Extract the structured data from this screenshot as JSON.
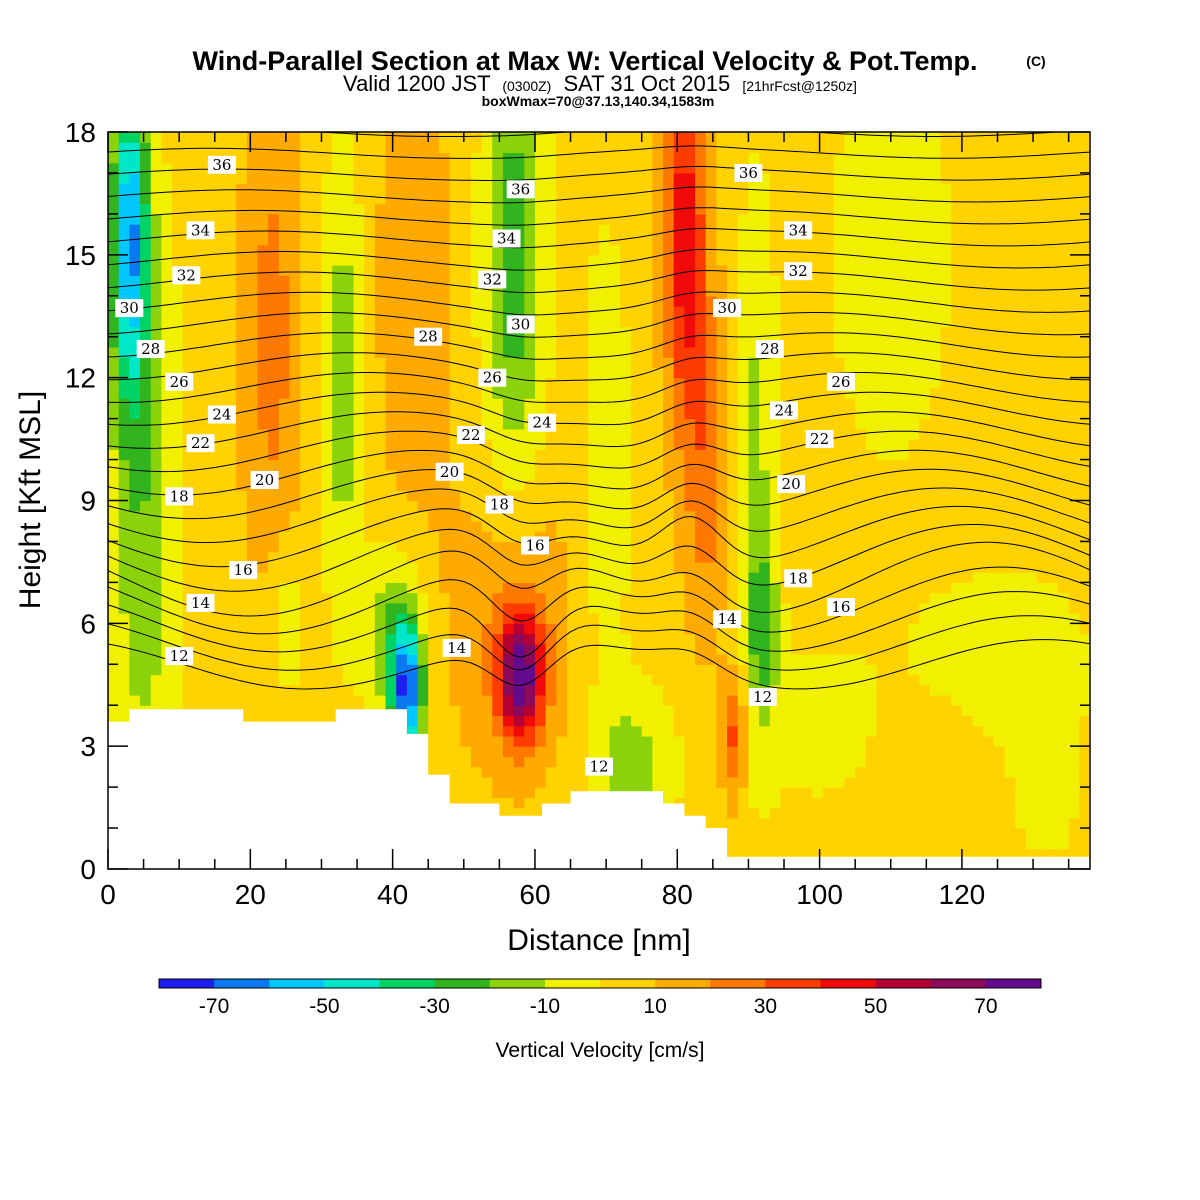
{
  "title": {
    "main": "Wind-Parallel Section at Max W: Vertical Velocity & Pot.Temp.",
    "copyright": "(C)",
    "valid_prefix": "Valid 1200 JST",
    "valid_z": "(0300Z)",
    "valid_date": "SAT 31 Oct 2015",
    "forecast": "[21hrFcst@1250z]",
    "box_info": "boxWmax=70@37.13,140.34,1583m"
  },
  "chart_data": {
    "type": "heatmap",
    "xlabel": "Distance [nm]",
    "ylabel": "Height [Kft MSL]",
    "x_ticks": [
      "0",
      "20",
      "40",
      "60",
      "80",
      "100",
      "120"
    ],
    "y_ticks": [
      "0",
      "3",
      "6",
      "9",
      "12",
      "15",
      "18"
    ],
    "xlim": [
      0,
      138
    ],
    "ylim": [
      0,
      18
    ],
    "colorbar": {
      "title": "Vertical Velocity [cm/s]",
      "levels": [
        -80,
        -70,
        -60,
        -50,
        -40,
        -30,
        -20,
        -10,
        0,
        10,
        20,
        30,
        40,
        50,
        60,
        70,
        80
      ],
      "labels": [
        "-70",
        "-50",
        "-30",
        "-10",
        "10",
        "30",
        "50",
        "70"
      ],
      "colors": [
        "#1e1ef0",
        "#0a78f0",
        "#00c8ff",
        "#00e6c8",
        "#00d264",
        "#32b41e",
        "#8cd20a",
        "#f0f000",
        "#ffd200",
        "#ffaa00",
        "#ff7800",
        "#ff3c00",
        "#f00a0a",
        "#b40032",
        "#8c0a5a",
        "#640a8c"
      ]
    },
    "terrain_kft": [
      [
        0,
        3.6
      ],
      [
        3,
        3.6
      ],
      [
        3,
        3.9
      ],
      [
        19,
        3.9
      ],
      [
        19,
        3.6
      ],
      [
        32,
        3.6
      ],
      [
        32,
        3.9
      ],
      [
        42,
        3.9
      ],
      [
        42,
        3.3
      ],
      [
        45,
        3.3
      ],
      [
        45,
        2.3
      ],
      [
        48,
        2.3
      ],
      [
        48,
        1.6
      ],
      [
        55,
        1.6
      ],
      [
        55,
        1.3
      ],
      [
        61,
        1.3
      ],
      [
        61,
        1.6
      ],
      [
        65,
        1.6
      ],
      [
        65,
        1.9
      ],
      [
        78,
        1.9
      ],
      [
        78,
        1.6
      ],
      [
        81,
        1.6
      ],
      [
        81,
        1.3
      ],
      [
        84,
        1.3
      ],
      [
        84,
        1.0
      ],
      [
        87,
        1.0
      ],
      [
        87,
        0.3
      ],
      [
        138,
        0.3
      ]
    ],
    "features": [
      {
        "x": 58,
        "y": 4.8,
        "value": 70
      },
      {
        "x": 81,
        "y": 16.5,
        "value": 45
      },
      {
        "x": 3,
        "y": 16.0,
        "value": -60
      },
      {
        "x": 42,
        "y": 4.2,
        "value": -70
      },
      {
        "x": 57,
        "y": 16.0,
        "value": -30
      },
      {
        "x": 88,
        "y": 3.3,
        "value": 30
      },
      {
        "x": 23,
        "y": 14.0,
        "value": 25
      }
    ],
    "theta_contours": {
      "levels": [
        12,
        13,
        14,
        15,
        16,
        17,
        18,
        19,
        20,
        21,
        22,
        23,
        24,
        25,
        26,
        27,
        28,
        29,
        30,
        31,
        32,
        33,
        34,
        35,
        36,
        37
      ],
      "labels": [
        {
          "text": "36",
          "x": 16,
          "y": 17.2
        },
        {
          "text": "36",
          "x": 58,
          "y": 16.6
        },
        {
          "text": "36",
          "x": 90,
          "y": 17.0
        },
        {
          "text": "34",
          "x": 13,
          "y": 15.6
        },
        {
          "text": "34",
          "x": 56,
          "y": 15.4
        },
        {
          "text": "34",
          "x": 97,
          "y": 15.6
        },
        {
          "text": "32",
          "x": 11,
          "y": 14.5
        },
        {
          "text": "32",
          "x": 54,
          "y": 14.4
        },
        {
          "text": "32",
          "x": 97,
          "y": 14.6
        },
        {
          "text": "30",
          "x": 3,
          "y": 13.7
        },
        {
          "text": "30",
          "x": 58,
          "y": 13.3
        },
        {
          "text": "30",
          "x": 87,
          "y": 13.7
        },
        {
          "text": "28",
          "x": 6,
          "y": 12.7
        },
        {
          "text": "28",
          "x": 45,
          "y": 13.0
        },
        {
          "text": "28",
          "x": 93,
          "y": 12.7
        },
        {
          "text": "26",
          "x": 10,
          "y": 11.9
        },
        {
          "text": "26",
          "x": 54,
          "y": 12.0
        },
        {
          "text": "26",
          "x": 103,
          "y": 11.9
        },
        {
          "text": "24",
          "x": 16,
          "y": 11.1
        },
        {
          "text": "24",
          "x": 61,
          "y": 10.9
        },
        {
          "text": "24",
          "x": 95,
          "y": 11.2
        },
        {
          "text": "22",
          "x": 13,
          "y": 10.4
        },
        {
          "text": "22",
          "x": 51,
          "y": 10.6
        },
        {
          "text": "22",
          "x": 100,
          "y": 10.5
        },
        {
          "text": "20",
          "x": 22,
          "y": 9.5
        },
        {
          "text": "20",
          "x": 48,
          "y": 9.7
        },
        {
          "text": "20",
          "x": 96,
          "y": 9.4
        },
        {
          "text": "18",
          "x": 10,
          "y": 9.1
        },
        {
          "text": "18",
          "x": 55,
          "y": 8.9
        },
        {
          "text": "18",
          "x": 97,
          "y": 7.1
        },
        {
          "text": "16",
          "x": 19,
          "y": 7.3
        },
        {
          "text": "16",
          "x": 60,
          "y": 7.9
        },
        {
          "text": "16",
          "x": 103,
          "y": 6.4
        },
        {
          "text": "14",
          "x": 13,
          "y": 6.5
        },
        {
          "text": "14",
          "x": 49,
          "y": 5.4
        },
        {
          "text": "14",
          "x": 87,
          "y": 6.1
        },
        {
          "text": "12",
          "x": 10,
          "y": 5.2
        },
        {
          "text": "12",
          "x": 92,
          "y": 4.2
        },
        {
          "text": "12",
          "x": 69,
          "y": 2.5
        }
      ]
    }
  }
}
